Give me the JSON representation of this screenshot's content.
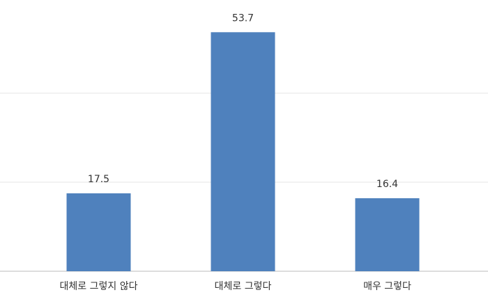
{
  "chart_data": {
    "type": "bar",
    "categories": [
      "대체로 그렇지 않다",
      "대체로 그렇다",
      "매우 그렇다"
    ],
    "values": [
      17.5,
      53.7,
      16.4
    ],
    "color": "#4f81bd",
    "ylim": [
      0,
      60
    ],
    "yticks": [
      0,
      20,
      40
    ],
    "grid": true
  }
}
